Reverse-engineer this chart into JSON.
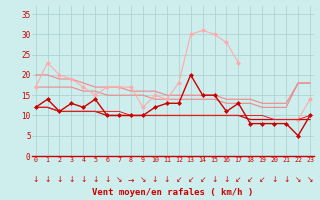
{
  "x": [
    0,
    1,
    2,
    3,
    4,
    5,
    6,
    7,
    8,
    9,
    10,
    11,
    12,
    13,
    14,
    15,
    16,
    17,
    18,
    19,
    20,
    21,
    22,
    23
  ],
  "rafales_pink": [
    17,
    23,
    20,
    19,
    17,
    15,
    17,
    17,
    17,
    12,
    15,
    14,
    18,
    30,
    31,
    30,
    28,
    23,
    null,
    null,
    null,
    null,
    9,
    14
  ],
  "trend_pink_high": [
    20,
    20,
    19,
    19,
    18,
    17,
    17,
    17,
    16,
    16,
    16,
    15,
    15,
    15,
    15,
    15,
    14,
    14,
    14,
    13,
    13,
    13,
    18,
    18
  ],
  "trend_pink_low": [
    17,
    17,
    17,
    17,
    16,
    16,
    15,
    15,
    15,
    15,
    14,
    14,
    14,
    14,
    14,
    14,
    13,
    13,
    13,
    12,
    12,
    12,
    18,
    18
  ],
  "vent_moyen": [
    12,
    14,
    11,
    13,
    12,
    14,
    10,
    10,
    10,
    10,
    12,
    13,
    13,
    20,
    15,
    15,
    11,
    13,
    8,
    8,
    8,
    8,
    5,
    10
  ],
  "trend_red1": [
    12,
    12,
    11,
    11,
    11,
    11,
    10,
    10,
    10,
    10,
    10,
    10,
    10,
    10,
    10,
    10,
    10,
    10,
    9,
    9,
    9,
    9,
    9,
    9
  ],
  "trend_red2": [
    12,
    12,
    11,
    11,
    11,
    11,
    11,
    11,
    10,
    10,
    10,
    10,
    10,
    10,
    10,
    10,
    10,
    10,
    10,
    10,
    9,
    9,
    9,
    10
  ],
  "background_color": "#ceeeed",
  "grid_color": "#aacccc",
  "color_dark_red": "#cc0000",
  "color_red": "#dd2222",
  "color_pink": "#ee8888",
  "color_light_pink": "#ffaaaa",
  "xlabel": "Vent moyen/en rafales ( km/h )",
  "yticks": [
    0,
    5,
    10,
    15,
    20,
    25,
    30,
    35
  ],
  "ylim": [
    0,
    37
  ],
  "xlim": [
    -0.3,
    23.3
  ],
  "arrow_chars": [
    "↓",
    "↓",
    "↓",
    "↓",
    "↓",
    "↓",
    "↓",
    "↘",
    "→",
    "↘",
    "↓",
    "↓",
    "↙",
    "↙",
    "↙",
    "↓",
    "↓",
    "↙",
    "↙",
    "↙",
    "↓",
    "↓",
    "↘",
    "↘"
  ]
}
